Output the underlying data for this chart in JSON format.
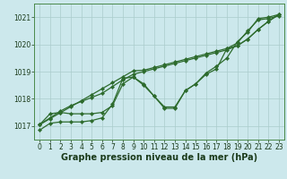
{
  "xlabel": "Graphe pression niveau de la mer (hPa)",
  "background_color": "#cce8ec",
  "grid_color": "#aacccc",
  "line_color": "#2d6b2d",
  "text_color": "#1a3a1a",
  "xlim": [
    -0.5,
    23.5
  ],
  "ylim": [
    1016.5,
    1021.5
  ],
  "yticks": [
    1017,
    1018,
    1019,
    1020,
    1021
  ],
  "xticks": [
    0,
    1,
    2,
    3,
    4,
    5,
    6,
    7,
    8,
    9,
    10,
    11,
    12,
    13,
    14,
    15,
    16,
    17,
    18,
    19,
    20,
    21,
    22,
    23
  ],
  "line1": [
    1016.85,
    1017.1,
    1017.15,
    1017.15,
    1017.15,
    1017.2,
    1017.3,
    1017.8,
    1018.75,
    1018.8,
    1018.55,
    1018.1,
    1017.65,
    1017.65,
    1018.3,
    1018.55,
    1018.9,
    1019.1,
    1019.85,
    1020.05,
    1020.5,
    1020.9,
    1020.95,
    1021.05
  ],
  "line2": [
    1017.05,
    1017.45,
    1017.5,
    1017.45,
    1017.45,
    1017.45,
    1017.5,
    1017.75,
    1018.55,
    1018.8,
    1018.5,
    1018.1,
    1017.7,
    1017.7,
    1018.3,
    1018.55,
    1018.95,
    1019.2,
    1019.5,
    1020.1,
    1020.45,
    1020.95,
    1021.0,
    1021.1
  ],
  "line3_trend": [
    1017.05,
    1017.27,
    1017.49,
    1017.71,
    1017.93,
    1018.15,
    1018.37,
    1018.59,
    1018.81,
    1019.03,
    1019.05,
    1019.15,
    1019.25,
    1019.35,
    1019.45,
    1019.55,
    1019.65,
    1019.75,
    1019.85,
    1019.95,
    1020.2,
    1020.55,
    1020.85,
    1021.1
  ],
  "line4_trend": [
    1017.05,
    1017.3,
    1017.55,
    1017.75,
    1017.9,
    1018.05,
    1018.2,
    1018.45,
    1018.7,
    1018.9,
    1019.0,
    1019.1,
    1019.2,
    1019.3,
    1019.4,
    1019.5,
    1019.6,
    1019.7,
    1019.8,
    1019.95,
    1020.2,
    1020.55,
    1020.85,
    1021.1
  ],
  "xlabel_fontsize": 7,
  "tick_fontsize": 5.5,
  "linewidth": 0.9,
  "markersize": 2.2
}
